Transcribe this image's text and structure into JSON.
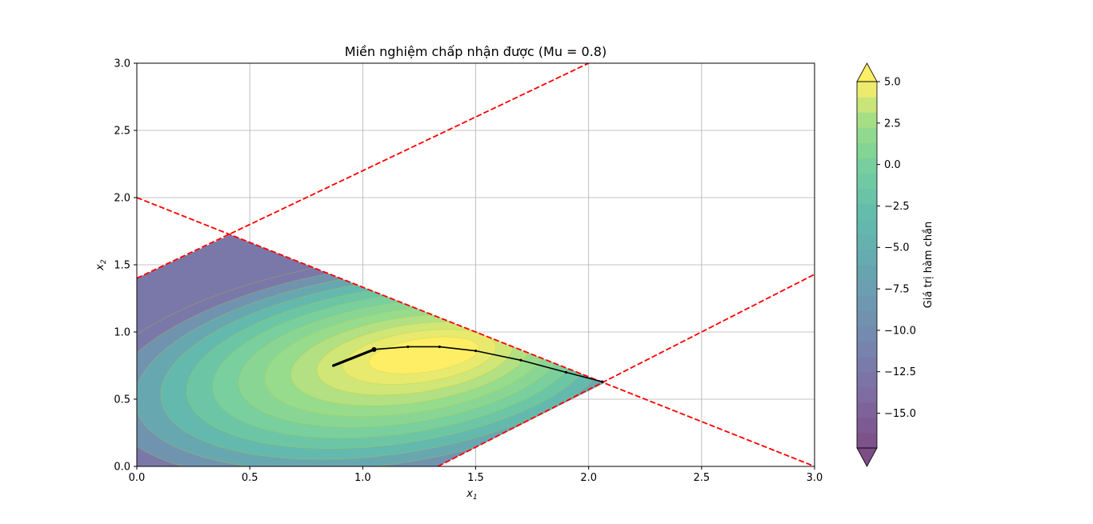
{
  "chart_data": {
    "type": "contour",
    "title": "Miền nghiệm chấp nhận được (Mu = 0.8)",
    "xlabel": "x",
    "xlabel_sub": "1",
    "ylabel": "x",
    "ylabel_sub": "2",
    "xlim": [
      0,
      3
    ],
    "ylim": [
      0,
      3
    ],
    "xticks": [
      "0.0",
      "0.5",
      "1.0",
      "1.5",
      "2.0",
      "2.5",
      "3.0"
    ],
    "yticks": [
      "0.0",
      "0.5",
      "1.0",
      "1.5",
      "2.0",
      "2.5",
      "3.0"
    ],
    "grid": true,
    "feasible_region": [
      [
        0,
        0
      ],
      [
        0,
        1.4
      ],
      [
        0.414,
        1.724
      ],
      [
        2.069,
        0.621
      ],
      [
        1.333,
        0
      ],
      [
        0,
        0
      ]
    ],
    "constraint_lines": [
      {
        "points": [
          [
            0,
            1.4
          ],
          [
            2.0,
            3.0
          ]
        ]
      },
      {
        "points": [
          [
            0,
            2.0
          ],
          [
            3.0,
            0.0
          ]
        ]
      },
      {
        "points": [
          [
            1.333,
            0
          ],
          [
            3.0,
            1.429
          ]
        ]
      }
    ],
    "trajectory": [
      [
        0.87,
        0.75
      ],
      [
        1.05,
        0.87
      ],
      [
        1.2,
        0.89
      ],
      [
        1.34,
        0.89
      ],
      [
        1.5,
        0.86
      ],
      [
        1.7,
        0.79
      ],
      [
        1.9,
        0.7
      ],
      [
        2.06,
        0.63
      ]
    ],
    "colorbar": {
      "label": "Giá trị hàm chắn",
      "ticks": [
        "5.0",
        "2.5",
        "0.0",
        "−2.5",
        "−5.0",
        "−7.5",
        "−10.0",
        "−12.5",
        "−15.0"
      ],
      "tick_values": [
        5.0,
        2.5,
        0.0,
        -2.5,
        -5.0,
        -7.5,
        -10.0,
        -12.5,
        -15.0
      ],
      "range": [
        -17.1,
        5.0
      ],
      "extend": "both",
      "colormap": "viridis",
      "alpha": 0.7
    },
    "contour_levels": [
      5.0,
      4.4,
      3.8,
      3.0,
      2.2,
      1.2,
      0.0,
      -1.5,
      -3.5,
      -6.0,
      -9.0,
      -12.5
    ]
  }
}
